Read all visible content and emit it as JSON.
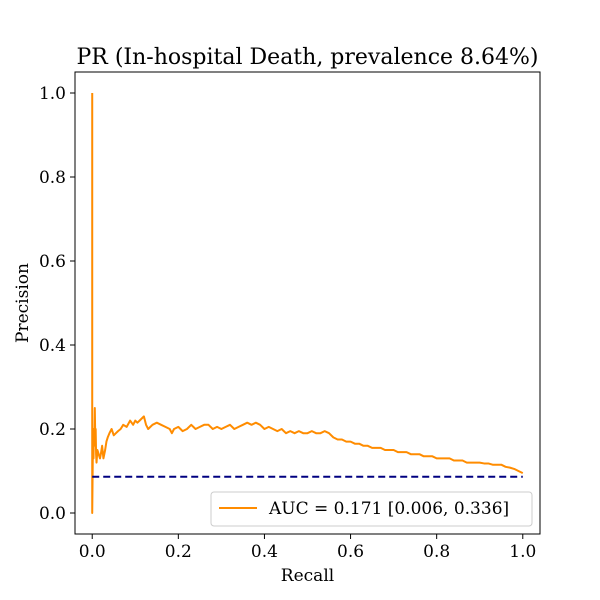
{
  "chart_data": {
    "type": "line",
    "title": "PR (In-hospital Death, prevalence 8.64%)",
    "xlabel": "Recall",
    "ylabel": "Precision",
    "xlim": [
      -0.04,
      1.04
    ],
    "ylim": [
      -0.05,
      1.05
    ],
    "xticks": [
      0.0,
      0.2,
      0.4,
      0.6,
      0.8,
      1.0
    ],
    "xtick_labels": [
      "0.0",
      "0.2",
      "0.4",
      "0.6",
      "0.8",
      "1.0"
    ],
    "yticks": [
      0.0,
      0.2,
      0.4,
      0.6,
      0.8,
      1.0
    ],
    "ytick_labels": [
      "0.0",
      "0.2",
      "0.4",
      "0.6",
      "0.8",
      "1.0"
    ],
    "grid": false,
    "legend_position": "lower-right",
    "series": [
      {
        "name": "AUC = 0.171 [0.006, 0.336]",
        "color": "#ff8c00",
        "style": "solid",
        "x": [
          0.0,
          0.0,
          0.001,
          0.002,
          0.003,
          0.004,
          0.005,
          0.006,
          0.007,
          0.008,
          0.009,
          0.01,
          0.012,
          0.015,
          0.018,
          0.02,
          0.023,
          0.026,
          0.03,
          0.033,
          0.036,
          0.04,
          0.045,
          0.05,
          0.055,
          0.06,
          0.066,
          0.072,
          0.08,
          0.088,
          0.095,
          0.1,
          0.105,
          0.11,
          0.115,
          0.12,
          0.125,
          0.13,
          0.135,
          0.14,
          0.15,
          0.16,
          0.17,
          0.18,
          0.185,
          0.19,
          0.2,
          0.21,
          0.22,
          0.23,
          0.24,
          0.25,
          0.26,
          0.27,
          0.28,
          0.29,
          0.3,
          0.31,
          0.32,
          0.33,
          0.34,
          0.35,
          0.36,
          0.37,
          0.38,
          0.39,
          0.4,
          0.41,
          0.42,
          0.43,
          0.44,
          0.45,
          0.46,
          0.47,
          0.48,
          0.49,
          0.5,
          0.51,
          0.52,
          0.53,
          0.54,
          0.55,
          0.56,
          0.57,
          0.58,
          0.59,
          0.6,
          0.61,
          0.62,
          0.63,
          0.64,
          0.65,
          0.66,
          0.67,
          0.68,
          0.69,
          0.7,
          0.71,
          0.72,
          0.73,
          0.74,
          0.75,
          0.76,
          0.77,
          0.78,
          0.79,
          0.8,
          0.81,
          0.82,
          0.83,
          0.84,
          0.85,
          0.86,
          0.87,
          0.88,
          0.89,
          0.9,
          0.91,
          0.92,
          0.93,
          0.94,
          0.95,
          0.96,
          0.97,
          0.98,
          0.99,
          1.0
        ],
        "y": [
          1.0,
          0.0,
          0.1,
          0.2,
          0.13,
          0.2,
          0.16,
          0.25,
          0.18,
          0.2,
          0.14,
          0.12,
          0.15,
          0.14,
          0.13,
          0.14,
          0.16,
          0.13,
          0.15,
          0.17,
          0.18,
          0.19,
          0.2,
          0.185,
          0.19,
          0.195,
          0.2,
          0.21,
          0.205,
          0.22,
          0.21,
          0.22,
          0.215,
          0.22,
          0.225,
          0.23,
          0.21,
          0.2,
          0.205,
          0.21,
          0.215,
          0.21,
          0.205,
          0.2,
          0.19,
          0.2,
          0.205,
          0.195,
          0.2,
          0.21,
          0.2,
          0.205,
          0.21,
          0.21,
          0.2,
          0.205,
          0.2,
          0.205,
          0.21,
          0.2,
          0.205,
          0.21,
          0.215,
          0.21,
          0.215,
          0.21,
          0.2,
          0.205,
          0.2,
          0.195,
          0.2,
          0.19,
          0.195,
          0.19,
          0.195,
          0.19,
          0.19,
          0.195,
          0.19,
          0.19,
          0.195,
          0.19,
          0.18,
          0.175,
          0.175,
          0.17,
          0.17,
          0.165,
          0.165,
          0.16,
          0.16,
          0.155,
          0.155,
          0.155,
          0.15,
          0.15,
          0.15,
          0.145,
          0.145,
          0.145,
          0.14,
          0.14,
          0.14,
          0.135,
          0.135,
          0.135,
          0.13,
          0.13,
          0.13,
          0.13,
          0.125,
          0.125,
          0.125,
          0.12,
          0.12,
          0.12,
          0.12,
          0.118,
          0.118,
          0.115,
          0.115,
          0.115,
          0.11,
          0.108,
          0.105,
          0.1,
          0.095
        ]
      },
      {
        "name": "",
        "color": "#000080",
        "style": "dashed",
        "x": [
          0.0,
          1.0
        ],
        "y": [
          0.0864,
          0.0864
        ]
      }
    ]
  }
}
